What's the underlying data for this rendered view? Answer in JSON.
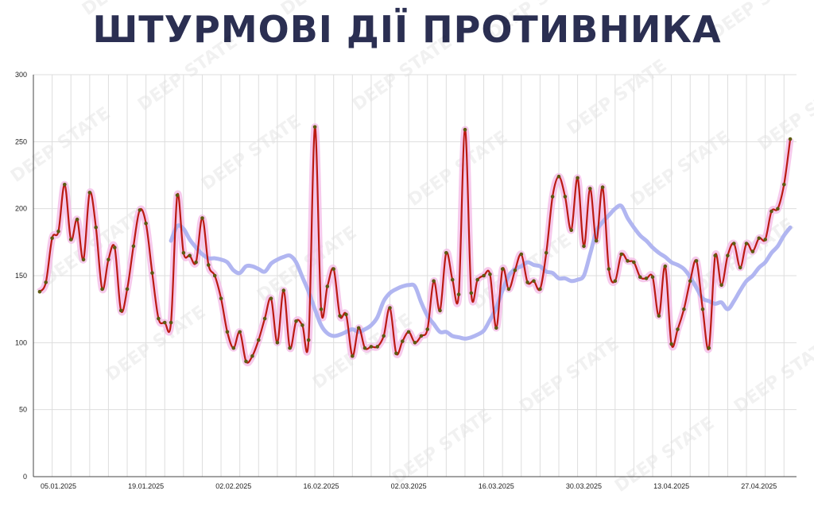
{
  "title": "ШТУРМОВІ ДІЇ ПРОТИВНИКА",
  "watermark": "DEEP STATE",
  "colors": {
    "daily_line": "#bb1a12",
    "daily_dot": "#5e5a10",
    "daily_glow": "#f3b8e6",
    "trend_line": "#a9aef0",
    "grid": "#dddddd",
    "title": "#2b2f52"
  },
  "chart_data": {
    "type": "line",
    "title": "ШТУРМОВІ ДІЇ ПРОТИВНИКА",
    "xlabel": "",
    "ylabel": "",
    "ylim": [
      0,
      300
    ],
    "yticks": [
      0,
      50,
      100,
      150,
      200,
      250,
      300
    ],
    "x_tick_labels": [
      "05.01.2025",
      "19.01.2025",
      "02.02.2025",
      "16.02.2025",
      "02.03.2025",
      "16.03.2025",
      "30.03.2025",
      "13.04.2025",
      "27.04.2025"
    ],
    "x_start": "2025-01-01",
    "x_end": "2025-05-03",
    "grid": true,
    "legend": "none",
    "series": [
      {
        "values": [
          138,
          145,
          178,
          183,
          218,
          177,
          192,
          162,
          212,
          186,
          140,
          162,
          171,
          124,
          140,
          172,
          199,
          189,
          152,
          118,
          115,
          115,
          210,
          167,
          165,
          160,
          193,
          158,
          150,
          133,
          108,
          96,
          108,
          86,
          90,
          102,
          118,
          133,
          100,
          139,
          96,
          116,
          113,
          102,
          261,
          125,
          142,
          155,
          120,
          121,
          90,
          111,
          96,
          97,
          97,
          105,
          126,
          92,
          101,
          108,
          100,
          105,
          110,
          146,
          124,
          167,
          147,
          136,
          259,
          137,
          147,
          150,
          151,
          111,
          155,
          140,
          154,
          166,
          145,
          146,
          140,
          167,
          209,
          224,
          209,
          184,
          223,
          172,
          215,
          176,
          216,
          155,
          146,
          166,
          161,
          160,
          149,
          148,
          149,
          120,
          157,
          99,
          110,
          125,
          146,
          161,
          125,
          96,
          165,
          143,
          165,
          174,
          156,
          174,
          168,
          178,
          177,
          198,
          200,
          218,
          252
        ]
      },
      {
        "values": [
          176,
          187,
          185,
          177,
          171,
          166,
          163,
          163,
          162,
          160,
          154,
          152,
          157,
          157,
          155,
          153,
          159,
          162,
          164,
          165,
          160,
          149,
          138,
          125,
          113,
          107,
          105,
          106,
          108,
          110,
          108,
          110,
          113,
          119,
          131,
          137,
          140,
          142,
          143,
          142,
          130,
          120,
          114,
          108,
          108,
          105,
          104,
          103,
          104,
          106,
          109,
          117,
          126,
          139,
          150,
          155,
          157,
          160,
          158,
          157,
          153,
          152,
          148,
          148,
          146,
          147,
          150,
          166,
          183,
          190,
          195,
          200,
          202,
          193,
          186,
          180,
          176,
          171,
          167,
          164,
          160,
          158,
          155,
          149,
          141,
          133,
          131,
          129,
          130,
          125,
          131,
          139,
          146,
          150,
          156,
          160,
          167,
          172,
          180,
          186
        ]
      }
    ]
  }
}
